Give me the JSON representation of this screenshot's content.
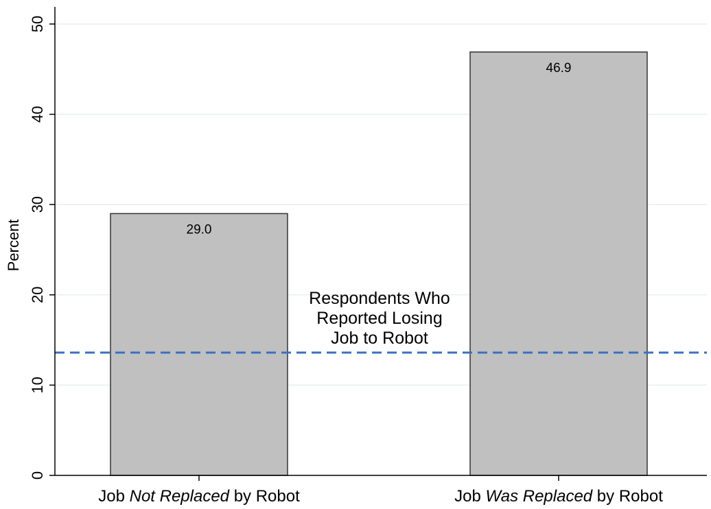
{
  "chart_data": {
    "type": "bar",
    "categories": [
      [
        "Job ",
        "Not Replaced",
        " by Robot"
      ],
      [
        "Job ",
        "Was Replaced",
        " by Robot"
      ]
    ],
    "values": [
      29.0,
      46.9
    ],
    "value_labels": [
      "29.0",
      "46.9"
    ],
    "ylabel": "Percent",
    "ylim": [
      0,
      52
    ],
    "yticks": [
      0,
      10,
      20,
      30,
      40,
      50
    ],
    "grid": true,
    "reference_line": {
      "value": 13.6,
      "style": "dashed",
      "label_lines": [
        "Respondents Who",
        "Reported Losing",
        "Job to Robot"
      ]
    },
    "colors": {
      "bar_fill": "#c0c0c0",
      "bar_stroke": "#333333",
      "reference_line": "#3a6fc4",
      "grid": "#e8eef0"
    }
  }
}
